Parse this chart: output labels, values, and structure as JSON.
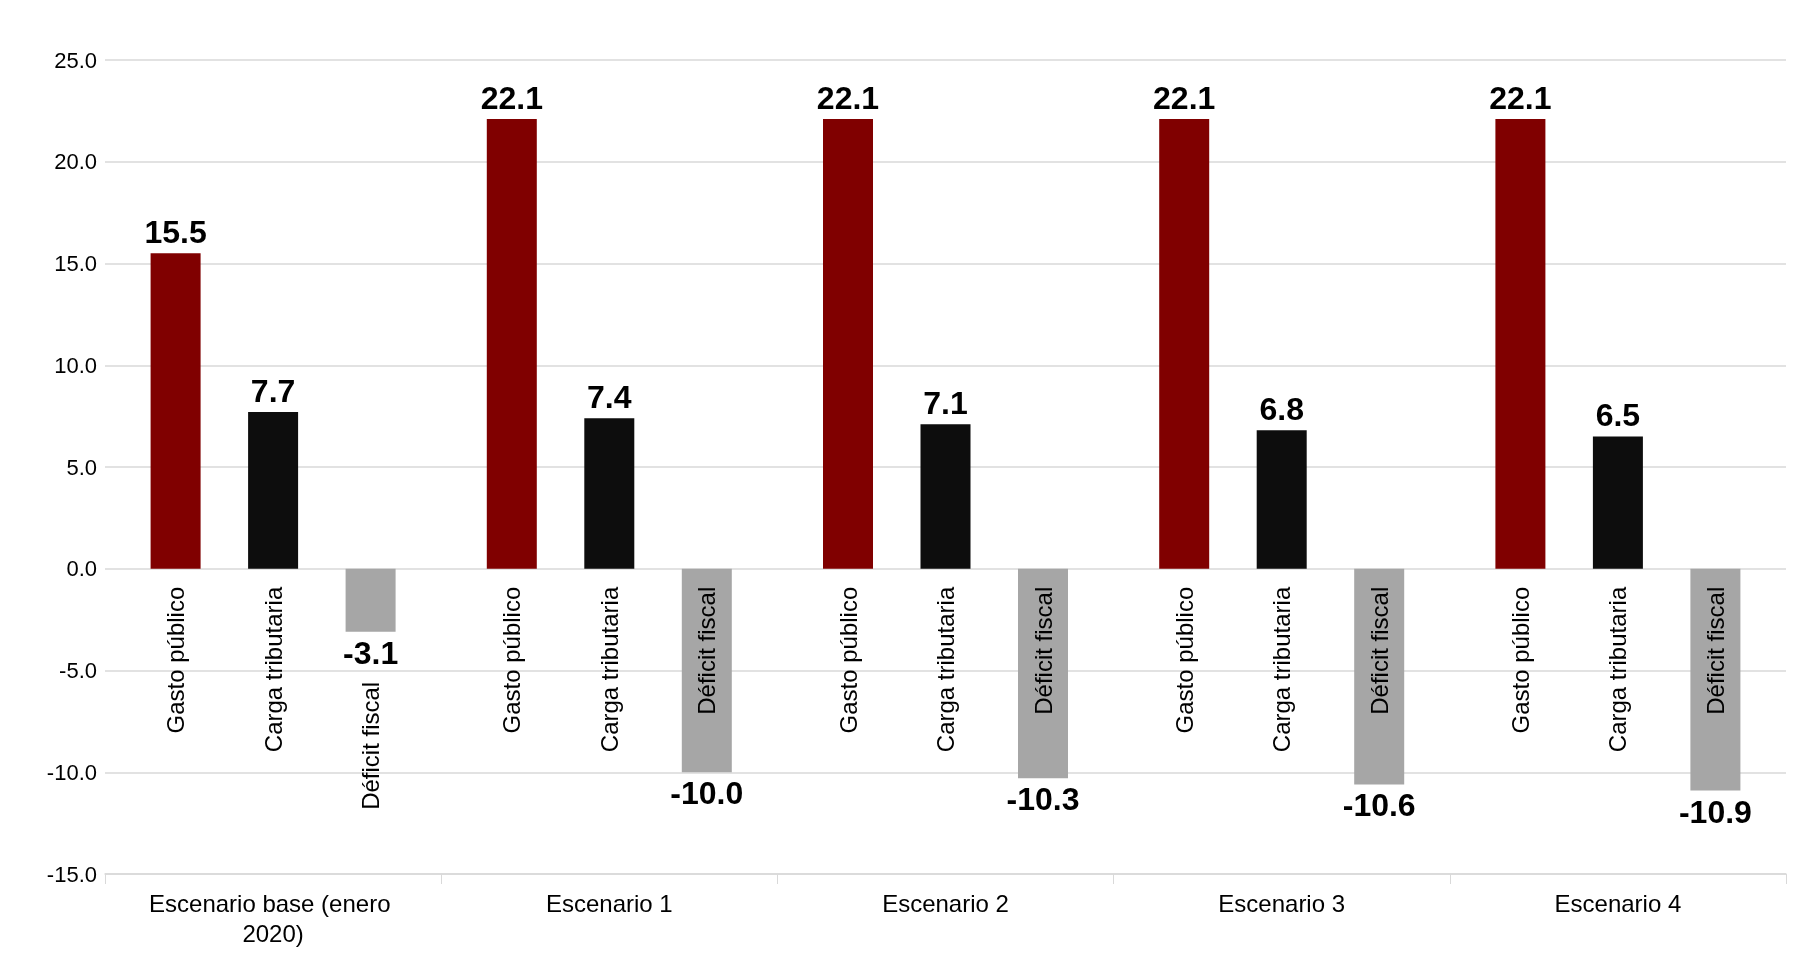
{
  "chart_data": {
    "type": "bar",
    "categories": [
      "Escenario base (enero 2020)",
      "Escenario 1",
      "Escenario 2",
      "Escenario 3",
      "Escenario 4"
    ],
    "series": [
      {
        "name": "Gasto público",
        "color": "#800000",
        "values": [
          15.5,
          22.1,
          22.1,
          22.1,
          22.1
        ],
        "value_labels": [
          "15.5",
          "22.1",
          "22.1",
          "22.1",
          "22.1"
        ]
      },
      {
        "name": "Carga tributaria",
        "color": "#0d0d0d",
        "values": [
          7.7,
          7.4,
          7.1,
          6.8,
          6.5
        ],
        "value_labels": [
          "7.7",
          "7.4",
          "7.1",
          "6.8",
          "6.5"
        ]
      },
      {
        "name": "Déficit fiscal",
        "color": "#a6a6a6",
        "values": [
          -3.1,
          -10.0,
          -10.3,
          -10.6,
          -10.9
        ],
        "value_labels": [
          "-3.1",
          "-10.0",
          "-10.3",
          "-10.6",
          "-10.9"
        ]
      }
    ],
    "ylim": [
      -15,
      25
    ],
    "yticks": [
      {
        "value": -15,
        "label": "-15.0"
      },
      {
        "value": -10,
        "label": "-10.0"
      },
      {
        "value": -5,
        "label": "-5.0"
      },
      {
        "value": 0,
        "label": "0.0"
      },
      {
        "value": 5,
        "label": "5.0"
      },
      {
        "value": 10,
        "label": "10.0"
      },
      {
        "value": 15,
        "label": "15.0"
      },
      {
        "value": 20,
        "label": "20.0"
      },
      {
        "value": 25,
        "label": "25.0"
      }
    ],
    "grid": "y",
    "legend": false
  }
}
